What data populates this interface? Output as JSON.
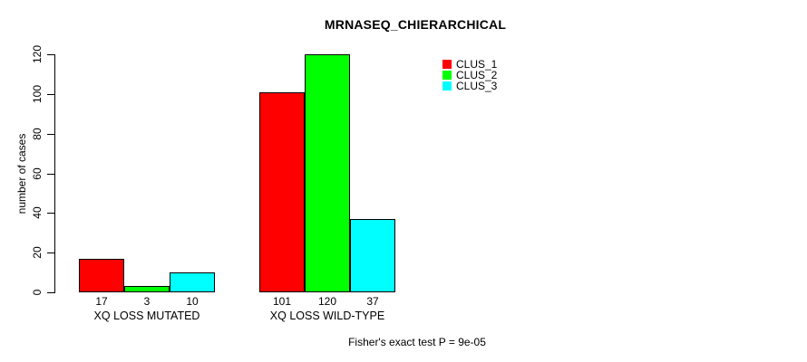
{
  "chart_data": {
    "type": "bar",
    "title": "MRNASEQ_CHIERARCHICAL",
    "categories": [
      "XQ LOSS MUTATED",
      "XQ LOSS WILD-TYPE"
    ],
    "series": [
      {
        "name": "CLUS_1",
        "color": "#FF0000",
        "values": [
          17,
          101
        ]
      },
      {
        "name": "CLUS_2",
        "color": "#00FF00",
        "values": [
          3,
          120
        ]
      },
      {
        "name": "CLUS_3",
        "color": "#00FFFF",
        "values": [
          10,
          37
        ]
      }
    ],
    "xlabel": "",
    "ylabel": "number of cases",
    "ylim": [
      0,
      120
    ],
    "yticks": [
      0,
      20,
      40,
      60,
      80,
      100,
      120
    ],
    "grid": false,
    "legend_position": "top-right",
    "annotation": "Fisher's exact test P = 9e-05",
    "colors": {
      "background": "#FFFFFF",
      "axis": "#000000",
      "text": "#000000"
    }
  }
}
